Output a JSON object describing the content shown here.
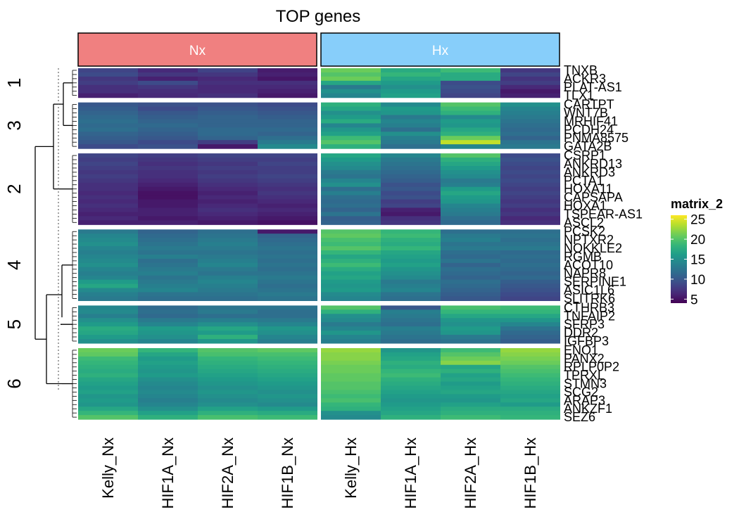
{
  "chart_data": {
    "type": "heatmap",
    "title": "TOP genes",
    "column_groups": [
      {
        "label": "Nx",
        "color": "#F08080"
      },
      {
        "label": "Hx",
        "color": "#87CEFA"
      }
    ],
    "columns": [
      "Kelly_Nx",
      "HIF1A_Nx",
      "HIF2A_Nx",
      "HIF1B_Nx",
      "Kelly_Hx",
      "HIF1A_Hx",
      "HIF2A_Hx",
      "HIF1B_Hx"
    ],
    "row_slices": [
      {
        "label": "1",
        "genes": [
          "TNXB",
          "",
          "ACKR3",
          "",
          "PLAT-AS1",
          "",
          "TLX1"
        ],
        "values": [
          [
            8.5,
            6.6,
            8.4,
            5.7,
            21.0,
            17.5,
            19.0,
            7.5
          ],
          [
            9.0,
            7.5,
            7.5,
            6.0,
            20.0,
            18.5,
            17.5,
            8.5
          ],
          [
            7.5,
            6.0,
            6.5,
            5.3,
            21.0,
            17.0,
            17.5,
            7.3
          ],
          [
            8.0,
            9.0,
            7.0,
            7.0,
            17.0,
            16.0,
            9.0,
            8.0
          ],
          [
            7.0,
            7.5,
            6.5,
            6.5,
            13.0,
            15.0,
            9.5,
            6.5
          ],
          [
            7.0,
            6.8,
            6.5,
            6.0,
            15.0,
            16.0,
            9.0,
            5.5
          ],
          [
            6.0,
            6.5,
            7.0,
            5.5,
            14.0,
            16.5,
            8.5,
            6.0
          ]
        ]
      },
      {
        "label": "3",
        "genes": [
          "CARTPT",
          "",
          "WNT7B",
          "",
          "MRHIF41",
          "",
          "PCDH24",
          "",
          "PNMA8575",
          "",
          "GATA2B"
        ],
        "values": [
          [
            10.0,
            9.5,
            9.5,
            9.0,
            18.0,
            14.5,
            20.0,
            15.0
          ],
          [
            10.5,
            9.0,
            10.0,
            9.5,
            17.0,
            16.0,
            19.0,
            14.0
          ],
          [
            11.0,
            10.0,
            10.5,
            10.0,
            15.0,
            15.5,
            18.0,
            13.5
          ],
          [
            11.5,
            10.5,
            11.0,
            10.5,
            16.0,
            13.0,
            14.5,
            13.0
          ],
          [
            12.0,
            11.0,
            11.0,
            11.0,
            17.5,
            14.0,
            16.0,
            12.5
          ],
          [
            11.5,
            11.5,
            11.0,
            11.0,
            14.0,
            13.5,
            15.5,
            12.0
          ],
          [
            12.0,
            11.0,
            11.5,
            11.5,
            15.5,
            12.0,
            17.0,
            11.5
          ],
          [
            11.0,
            10.5,
            11.5,
            11.0,
            16.5,
            15.0,
            18.0,
            12.0
          ],
          [
            10.5,
            10.0,
            11.0,
            12.0,
            19.0,
            13.5,
            21.0,
            11.0
          ],
          [
            10.0,
            9.0,
            8.0,
            13.0,
            20.0,
            13.0,
            24.0,
            12.5
          ],
          [
            9.0,
            9.5,
            5.5,
            14.5,
            18.0,
            12.0,
            14.0,
            13.0
          ]
        ]
      },
      {
        "label": "2",
        "genes": [
          "CSRP1",
          "",
          "ANKRD13",
          "",
          "ANKRD3",
          "",
          "PCTA1",
          "",
          "HOXA11",
          "",
          "CAPSAPA",
          "",
          "HOXA1",
          "",
          "TSPEAR-AS1",
          "",
          "ASCL2"
        ],
        "values": [
          [
            8.5,
            8.0,
            8.5,
            8.5,
            17.0,
            14.0,
            20.0,
            9.0
          ],
          [
            8.0,
            7.5,
            8.0,
            8.0,
            16.0,
            13.0,
            18.0,
            9.5
          ],
          [
            8.5,
            7.0,
            7.5,
            8.5,
            15.0,
            12.5,
            17.0,
            9.0
          ],
          [
            8.0,
            7.5,
            8.0,
            8.0,
            14.5,
            12.0,
            16.0,
            8.5
          ],
          [
            7.5,
            7.0,
            7.5,
            8.0,
            13.0,
            11.5,
            15.0,
            9.0
          ],
          [
            8.0,
            7.0,
            8.0,
            8.5,
            12.5,
            11.0,
            14.5,
            8.5
          ],
          [
            7.5,
            6.5,
            7.5,
            8.0,
            14.0,
            10.5,
            13.0,
            9.0
          ],
          [
            7.0,
            6.0,
            7.0,
            7.5,
            15.0,
            9.5,
            13.5,
            8.5
          ],
          [
            7.0,
            5.5,
            6.5,
            7.0,
            12.0,
            10.0,
            16.0,
            8.0
          ],
          [
            6.5,
            5.0,
            6.0,
            7.5,
            13.5,
            9.0,
            17.0,
            8.5
          ],
          [
            7.0,
            5.0,
            6.5,
            7.0,
            12.0,
            9.5,
            16.0,
            8.0
          ],
          [
            6.5,
            5.5,
            6.0,
            6.5,
            11.5,
            8.0,
            15.5,
            7.5
          ],
          [
            7.0,
            5.5,
            6.5,
            6.0,
            12.0,
            8.5,
            14.0,
            8.0
          ],
          [
            6.5,
            6.0,
            7.0,
            6.5,
            11.0,
            6.0,
            13.5,
            7.0
          ],
          [
            6.0,
            6.0,
            6.5,
            6.0,
            12.5,
            5.5,
            13.0,
            7.5
          ],
          [
            6.5,
            5.5,
            6.0,
            5.5,
            10.5,
            7.0,
            12.0,
            6.5
          ],
          [
            6.0,
            6.0,
            5.5,
            5.0,
            11.0,
            7.5,
            11.5,
            7.0
          ]
        ]
      },
      {
        "label": "4",
        "genes": [
          "PCSK2",
          "",
          "NPTXR2",
          "",
          "NOKKLE2",
          "",
          "RGMB",
          "",
          "ACOT10",
          "",
          "NAPR8",
          "",
          "SERPINE1",
          "",
          "ASIC1L6",
          "",
          "SLITRK6"
        ],
        "values": [
          [
            13.0,
            11.0,
            12.0,
            5.5,
            20.0,
            18.5,
            12.0,
            12.0
          ],
          [
            14.0,
            11.5,
            12.5,
            11.0,
            20.5,
            19.0,
            13.0,
            12.5
          ],
          [
            14.5,
            12.0,
            13.0,
            11.5,
            19.5,
            18.0,
            13.5,
            12.0
          ],
          [
            15.0,
            12.5,
            13.5,
            12.0,
            19.0,
            17.5,
            12.5,
            12.5
          ],
          [
            14.0,
            13.0,
            13.0,
            12.5,
            20.0,
            18.5,
            13.0,
            13.0
          ],
          [
            13.5,
            12.5,
            12.5,
            12.0,
            18.5,
            17.0,
            12.0,
            11.5
          ],
          [
            14.0,
            13.5,
            13.0,
            12.5,
            17.0,
            16.5,
            11.5,
            12.0
          ],
          [
            14.5,
            12.0,
            13.5,
            12.0,
            18.0,
            16.0,
            12.5,
            11.5
          ],
          [
            15.0,
            12.5,
            14.0,
            12.5,
            19.0,
            16.5,
            11.0,
            12.0
          ],
          [
            14.0,
            13.0,
            13.0,
            12.0,
            17.5,
            15.5,
            12.0,
            11.5
          ],
          [
            13.5,
            13.5,
            12.5,
            12.5,
            16.5,
            15.0,
            11.5,
            11.0
          ],
          [
            14.0,
            12.5,
            13.5,
            13.0,
            17.0,
            14.5,
            11.0,
            11.5
          ],
          [
            16.0,
            13.0,
            14.0,
            12.5,
            16.0,
            13.0,
            12.0,
            10.5
          ],
          [
            17.0,
            13.5,
            13.5,
            12.0,
            15.5,
            13.5,
            11.5,
            10.0
          ],
          [
            14.5,
            14.0,
            13.0,
            12.5,
            16.0,
            14.0,
            11.0,
            9.5
          ],
          [
            13.5,
            12.5,
            12.5,
            13.0,
            14.5,
            12.5,
            10.5,
            9.0
          ],
          [
            13.0,
            12.0,
            12.0,
            12.5,
            14.0,
            12.0,
            10.0,
            8.5
          ]
        ]
      },
      {
        "label": "5",
        "genes": [
          "CTHRB3",
          "",
          "TNFAIP2",
          "",
          "SFRP3",
          "",
          "DDR2",
          "",
          "IGFBP3"
        ],
        "values": [
          [
            14.0,
            11.5,
            12.5,
            12.5,
            20.0,
            10.0,
            19.5,
            19.0
          ],
          [
            14.5,
            12.0,
            13.0,
            12.0,
            18.0,
            13.5,
            18.5,
            18.5
          ],
          [
            13.5,
            11.5,
            12.0,
            12.0,
            15.0,
            13.0,
            17.0,
            17.0
          ],
          [
            15.0,
            13.0,
            13.5,
            13.0,
            14.5,
            12.5,
            15.5,
            15.5
          ],
          [
            16.0,
            14.0,
            15.0,
            14.0,
            13.0,
            12.0,
            15.0,
            14.0
          ],
          [
            17.5,
            16.0,
            17.0,
            15.5,
            14.0,
            13.5,
            16.0,
            12.5
          ],
          [
            17.0,
            15.5,
            16.0,
            15.0,
            15.5,
            13.0,
            15.5,
            11.5
          ],
          [
            16.0,
            15.0,
            18.0,
            14.0,
            14.0,
            12.5,
            13.0,
            11.0
          ],
          [
            15.0,
            14.0,
            15.5,
            13.5,
            13.5,
            12.0,
            12.5,
            10.5
          ]
        ]
      },
      {
        "label": "6",
        "genes": [
          "ENO1",
          "",
          "PANX2",
          "",
          "RPLP0P2",
          "",
          "TPRXL",
          "",
          "STMN3",
          "",
          "SCG2",
          "",
          "ARAP3",
          "",
          "ANKZF1",
          "",
          "SEZ6"
        ],
        "values": [
          [
            21.0,
            18.5,
            20.0,
            20.5,
            22.5,
            15.5,
            19.0,
            22.5
          ],
          [
            20.5,
            17.0,
            19.5,
            19.5,
            22.0,
            16.5,
            20.0,
            22.0
          ],
          [
            19.0,
            16.0,
            18.5,
            19.0,
            22.0,
            17.0,
            21.0,
            21.5
          ],
          [
            18.5,
            16.5,
            18.0,
            18.5,
            21.5,
            18.0,
            22.0,
            21.0
          ],
          [
            18.0,
            16.0,
            17.5,
            18.0,
            21.0,
            17.5,
            17.0,
            20.0
          ],
          [
            17.5,
            15.5,
            17.0,
            17.5,
            21.0,
            18.5,
            18.0,
            19.5
          ],
          [
            18.0,
            16.0,
            16.5,
            17.0,
            20.5,
            19.0,
            16.5,
            19.0
          ],
          [
            17.0,
            15.0,
            16.0,
            16.5,
            20.5,
            18.0,
            17.0,
            18.5
          ],
          [
            16.5,
            14.5,
            15.5,
            16.0,
            20.0,
            17.5,
            16.0,
            18.0
          ],
          [
            16.0,
            14.0,
            15.0,
            15.5,
            20.0,
            17.0,
            16.5,
            17.5
          ],
          [
            16.5,
            14.5,
            15.5,
            15.0,
            19.5,
            16.5,
            17.0,
            17.0
          ],
          [
            15.5,
            14.0,
            15.0,
            15.5,
            19.0,
            16.0,
            16.0,
            16.5
          ],
          [
            16.0,
            13.5,
            14.5,
            15.0,
            19.5,
            15.5,
            15.5,
            17.0
          ],
          [
            15.5,
            14.0,
            15.0,
            14.5,
            18.5,
            16.0,
            16.5,
            16.0
          ],
          [
            17.0,
            15.0,
            16.5,
            16.0,
            18.0,
            16.5,
            17.5,
            17.5
          ],
          [
            18.5,
            16.5,
            18.0,
            17.5,
            15.0,
            17.0,
            18.0,
            18.0
          ],
          [
            20.0,
            18.0,
            19.5,
            19.0,
            14.5,
            18.0,
            19.0,
            18.5
          ]
        ]
      }
    ],
    "legend": {
      "title": "matrix_2",
      "ticks": [
        5,
        10,
        15,
        20,
        25
      ],
      "range": [
        4,
        26
      ],
      "position": "right",
      "colormap": "viridis"
    }
  }
}
